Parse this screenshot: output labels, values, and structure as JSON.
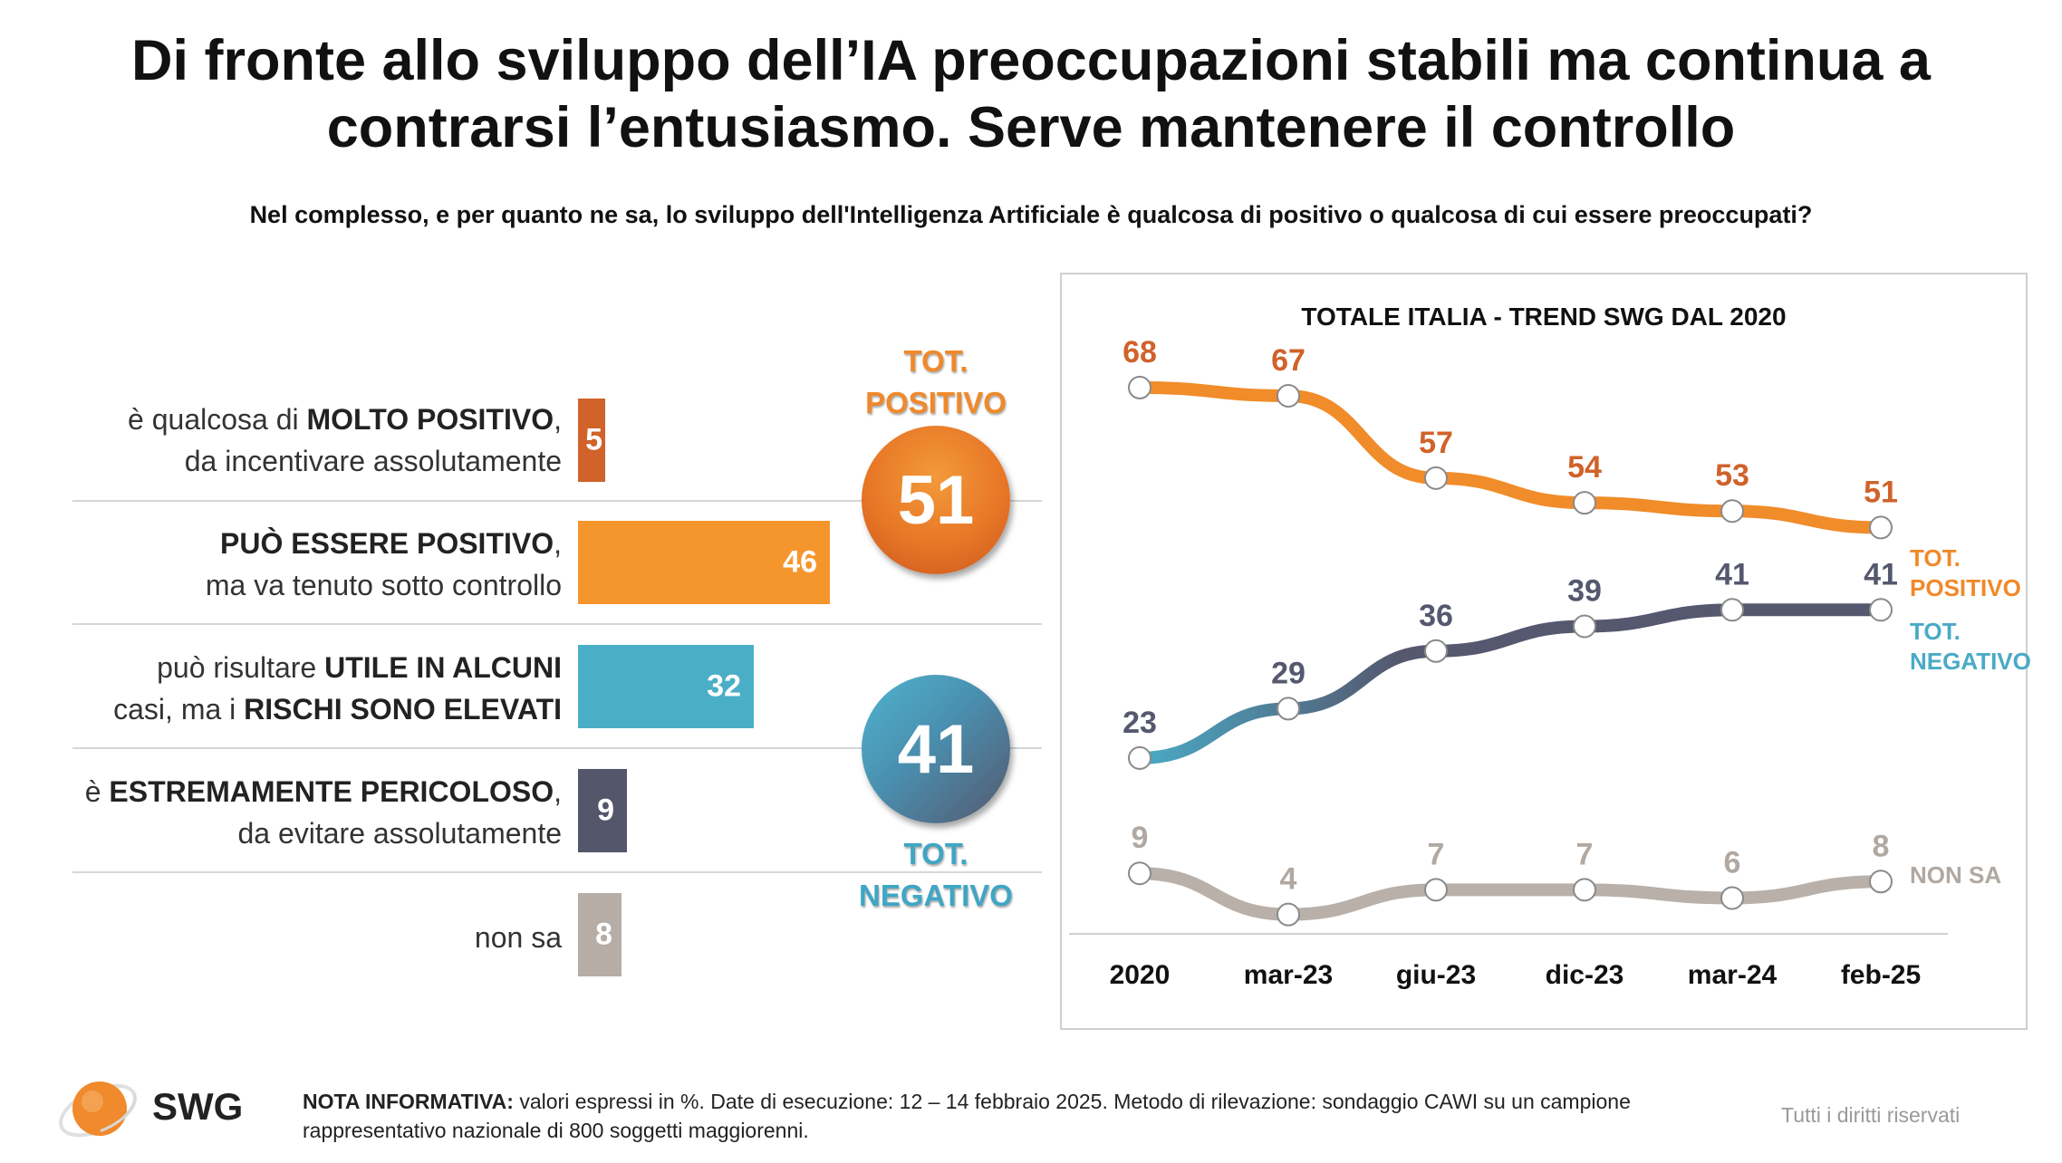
{
  "title": "Di fronte allo sviluppo dell’IA preoccupazioni stabili ma continua a contrarsi l’entusiasmo. Serve mantenere il controllo",
  "question": "Nel complesso, e per quanto ne sa, lo sviluppo dell'Intelligenza Artificiale è qualcosa di positivo o qualcosa di cui essere preoccupati?",
  "colors": {
    "molto_positivo": "#D0622A",
    "puo_essere_positivo": "#F5962D",
    "utile_rischi": "#4AAEC7",
    "pericoloso": "#54566C",
    "non_sa": "#B5ADA6",
    "trend_positivo": "#F08C2A",
    "trend_negativo": "#55586E",
    "trend_non_sa": "#B8B0A9"
  },
  "bars": [
    {
      "line1_plain": "è qualcosa di ",
      "line1_bold": "MOLTO POSITIVO",
      "line1_end": ",",
      "line2": "da incentivare assolutamente",
      "value": "5"
    },
    {
      "line1_bold": "PUÒ ESSERE POSITIVO",
      "line1_end": ",",
      "line2": "ma va tenuto sotto controllo",
      "value": "46"
    },
    {
      "line1_plain": "può risultare ",
      "line1_bold": "UTILE IN ALCUNI",
      "line2_plain": "casi, ma i ",
      "line2_bold": "RISCHI SONO ELEVATI",
      "value": "32"
    },
    {
      "line1_plain": "è ",
      "line1_bold": "ESTREMAMENTE PERICOLOSO",
      "line1_end": ",",
      "line2": "da evitare assolutamente",
      "value": "9"
    },
    {
      "line1_plain": "non sa",
      "value": "8"
    }
  ],
  "totals": {
    "positivo": {
      "line1": "TOT.",
      "line2": "POSITIVO",
      "value": "51"
    },
    "negativo": {
      "line1": "TOT.",
      "line2": "NEGATIVO",
      "value": "41"
    }
  },
  "chart_data": [
    {
      "type": "bar",
      "orientation": "horizontal",
      "categories": [
        "è qualcosa di MOLTO POSITIVO, da incentivare assolutamente",
        "PUÒ ESSERE POSITIVO, ma va tenuto sotto controllo",
        "può risultare UTILE IN ALCUNI casi, ma i RISCHI SONO ELEVATI",
        "è ESTREMAMENTE PERICOLOSO, da evitare assolutamente",
        "non sa"
      ],
      "values": [
        5,
        46,
        32,
        9,
        8
      ],
      "totals": {
        "TOT. POSITIVO": 51,
        "TOT. NEGATIVO": 41
      }
    },
    {
      "type": "line",
      "title": "TOTALE ITALIA - TREND SWG DAL 2020",
      "x": [
        "2020",
        "mar-23",
        "giu-23",
        "dic-23",
        "mar-24",
        "feb-25"
      ],
      "series": [
        {
          "name": "TOT. POSITIVO",
          "values": [
            68,
            67,
            57,
            54,
            53,
            51
          ]
        },
        {
          "name": "TOT. NEGATIVO",
          "values": [
            23,
            29,
            36,
            39,
            41,
            41
          ]
        },
        {
          "name": "NON SA",
          "values": [
            9,
            4,
            7,
            7,
            6,
            8
          ]
        }
      ]
    }
  ],
  "footer": {
    "note_label": "NOTA INFORMATIVA:",
    "note_text": " valori espressi in %. Date di esecuzione: 12 – 14 febbraio 2025. Metodo di rilevazione: sondaggio CAWI su un campione rappresentativo nazionale di 800 soggetti maggiorenni.",
    "rights": "Tutti i diritti riservati",
    "logo": "SWG"
  }
}
